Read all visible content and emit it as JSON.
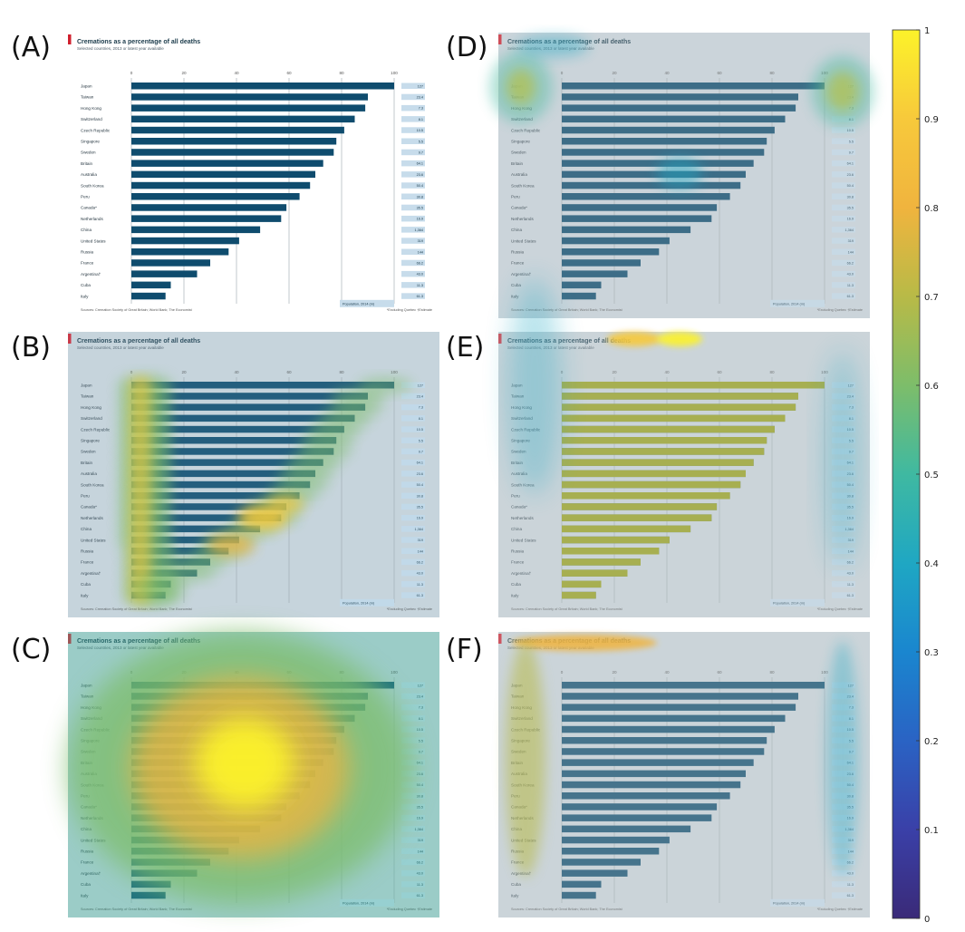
{
  "panel_labels": [
    "(A)",
    "(B)",
    "(C)",
    "(D)",
    "(E)",
    "(F)"
  ],
  "chart_data": {
    "type": "bar",
    "orientation": "horizontal",
    "title": "Cremations as a percentage of all deaths",
    "subtitle": "Selected countries, 2013 or latest year available",
    "categories": [
      "Japan",
      "Taiwan",
      "Hong Kong",
      "Switzerland",
      "Czech Republic",
      "Singapore",
      "Sweden",
      "Britain",
      "Australia",
      "South Korea",
      "Peru",
      "Canada*",
      "Netherlands",
      "China",
      "United States",
      "Russia",
      "France",
      "Argentina†",
      "Cuba",
      "Italy"
    ],
    "values": [
      100,
      90,
      89,
      85,
      81,
      78,
      77,
      73,
      70,
      68,
      64,
      59,
      57,
      49,
      41,
      37,
      30,
      25,
      15,
      13
    ],
    "xlim": [
      0,
      100
    ],
    "xticks": [
      0,
      20,
      40,
      60,
      80,
      100
    ],
    "population_header": "Population, 2014 (m)",
    "population_labels": [
      "127",
      "23.4",
      "7.3",
      "8.1",
      "10.5",
      "5.5",
      "9.7",
      "64.1",
      "23.6",
      "50.4",
      "30.8",
      "35.5",
      "16.9",
      "1,364",
      "319",
      "144",
      "66.2",
      "43.0",
      "11.3",
      "61.3"
    ],
    "footnote_left": "Sources: Cremation Society of Great Britain; World Bank; The Economist",
    "footnote_right": "*Excluding Quebec   †Estimate",
    "bar_color": "#0f4c6e"
  },
  "colorbar": {
    "ticks": [
      "1",
      "0.9",
      "0.8",
      "0.7",
      "0.6",
      "0.5",
      "0.4",
      "0.3",
      "0.2",
      "0.1",
      "0"
    ],
    "colors": [
      "#fcf22a",
      "#f7c93b",
      "#f0b43e",
      "#b8ba47",
      "#7dbd6a",
      "#3fb9a1",
      "#1fa7c3",
      "#1a86cf",
      "#2a63c4",
      "#3a40a8",
      "#3a2a78"
    ]
  }
}
